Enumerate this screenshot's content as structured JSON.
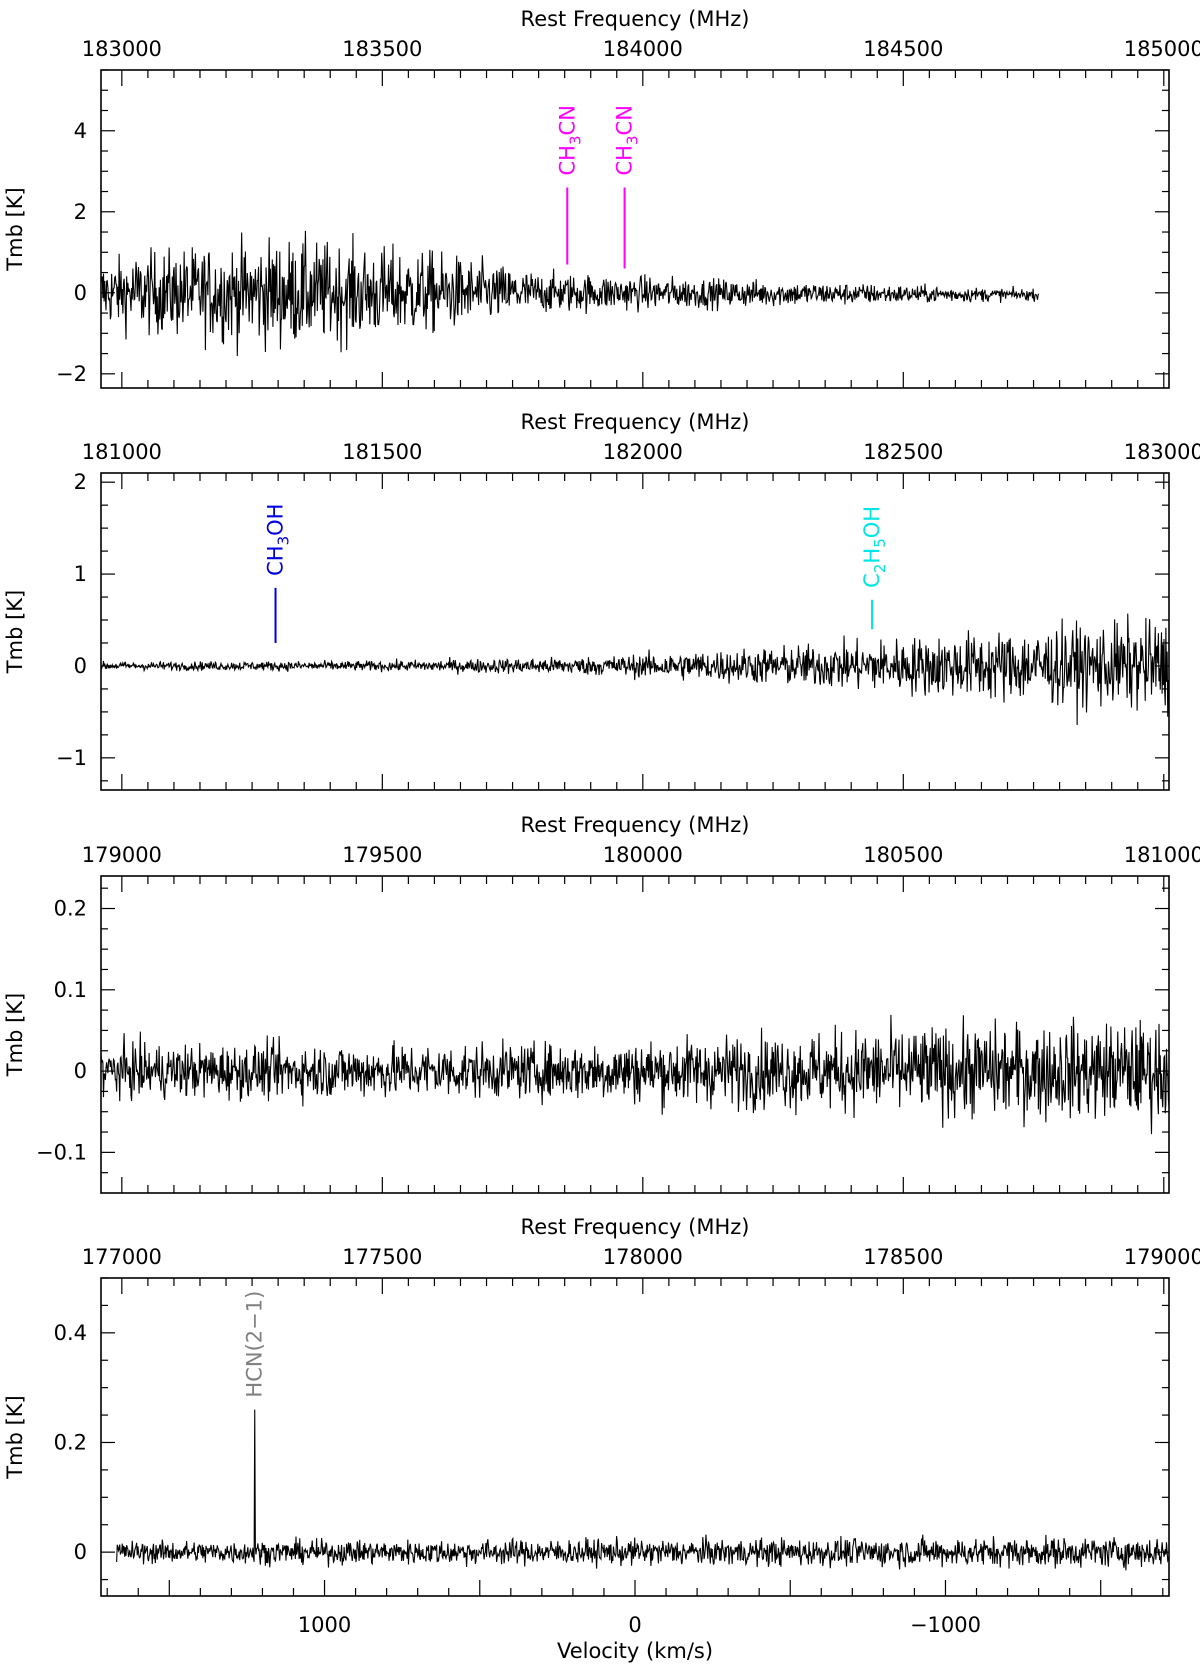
{
  "chart_data": [
    {
      "type": "line",
      "top_axis_label": "Rest Frequency (MHz)",
      "ylabel": "Tmb [K]",
      "freq_ticks": [
        183000,
        183500,
        184000,
        184500,
        185000
      ],
      "freq_range": [
        182960,
        185010
      ],
      "ylim": [
        -2.35,
        5.5
      ],
      "y_ticks": [
        -2,
        0,
        2,
        4
      ],
      "signal": {
        "start": 182960,
        "end": 184760,
        "noise_env": [
          [
            182960,
            0.7
          ],
          [
            183050,
            0.9
          ],
          [
            183300,
            1.2
          ],
          [
            183600,
            0.9
          ],
          [
            183800,
            0.45
          ],
          [
            184200,
            0.3
          ],
          [
            184760,
            0.12
          ]
        ],
        "baseline": [
          [
            182960,
            0.0
          ],
          [
            183900,
            0.0
          ],
          [
            184760,
            -0.05
          ]
        ]
      },
      "lines": [
        {
          "label": "CH3CN",
          "freq": 183855,
          "ymin": 0.7,
          "ymax": 2.6,
          "color": "#ff00ff"
        },
        {
          "label": "CH3CN",
          "freq": 183965,
          "ymin": 0.6,
          "ymax": 2.6,
          "color": "#ff00ff"
        }
      ]
    },
    {
      "type": "line",
      "top_axis_label": "Rest Frequency (MHz)",
      "ylabel": "Tmb [K]",
      "freq_ticks": [
        181000,
        181500,
        182000,
        182500,
        183000
      ],
      "freq_range": [
        180960,
        183010
      ],
      "ylim": [
        -1.35,
        2.1
      ],
      "y_ticks": [
        -1,
        0,
        1,
        2
      ],
      "signal": {
        "start": 180960,
        "end": 183010,
        "noise_env": [
          [
            180960,
            0.04
          ],
          [
            181500,
            0.05
          ],
          [
            181900,
            0.09
          ],
          [
            182300,
            0.2
          ],
          [
            182700,
            0.35
          ],
          [
            183010,
            0.45
          ]
        ],
        "baseline": [
          [
            180960,
            0.0
          ],
          [
            183010,
            0.0
          ]
        ]
      },
      "lines": [
        {
          "label": "CH3OH",
          "freq": 181295,
          "ymin": 0.25,
          "ymax": 0.85,
          "color": "#0000e0"
        },
        {
          "label": "C2H5OH",
          "freq": 182440,
          "ymin": 0.4,
          "ymax": 0.72,
          "color": "#00e5e5"
        }
      ]
    },
    {
      "type": "line",
      "top_axis_label": "Rest Frequency (MHz)",
      "ylabel": "Tmb [K]",
      "freq_ticks": [
        179000,
        179500,
        180000,
        180500,
        181000
      ],
      "freq_range": [
        178960,
        181010
      ],
      "ylim": [
        -0.15,
        0.24
      ],
      "y_ticks": [
        -0.1,
        0,
        0.1,
        0.2
      ],
      "signal": {
        "start": 178960,
        "end": 181010,
        "noise_env": [
          [
            178960,
            0.03
          ],
          [
            179800,
            0.03
          ],
          [
            180200,
            0.04
          ],
          [
            180600,
            0.05
          ],
          [
            181010,
            0.055
          ]
        ],
        "baseline": [
          [
            178960,
            0.0
          ],
          [
            181010,
            0.0
          ]
        ]
      },
      "lines": []
    },
    {
      "type": "line",
      "top_axis_label": "Rest Frequency (MHz)",
      "ylabel": "Tmb [K]",
      "xlabel": "Velocity (km/s)",
      "freq_ticks": [
        177000,
        177500,
        178000,
        178500,
        179000
      ],
      "freq_range": [
        176960,
        179010
      ],
      "ylim": [
        -0.08,
        0.5
      ],
      "y_ticks": [
        0,
        0.2,
        0.4
      ],
      "velocity_ticks": [
        1000,
        0,
        -1000
      ],
      "velocity_range": [
        1720,
        -1720
      ],
      "signal": {
        "start": 176990,
        "end": 179010,
        "noise_env": [
          [
            176990,
            0.018
          ],
          [
            179010,
            0.025
          ]
        ],
        "baseline": [
          [
            176990,
            0.0
          ],
          [
            179010,
            0.0
          ]
        ],
        "spike": {
          "freq": 177255,
          "value": 0.26
        }
      },
      "lines": [
        {
          "label": "HCN(2−1)",
          "freq": 177255,
          "ymin": 0.26,
          "ymax": 0.26,
          "color": "#808080"
        }
      ]
    }
  ]
}
